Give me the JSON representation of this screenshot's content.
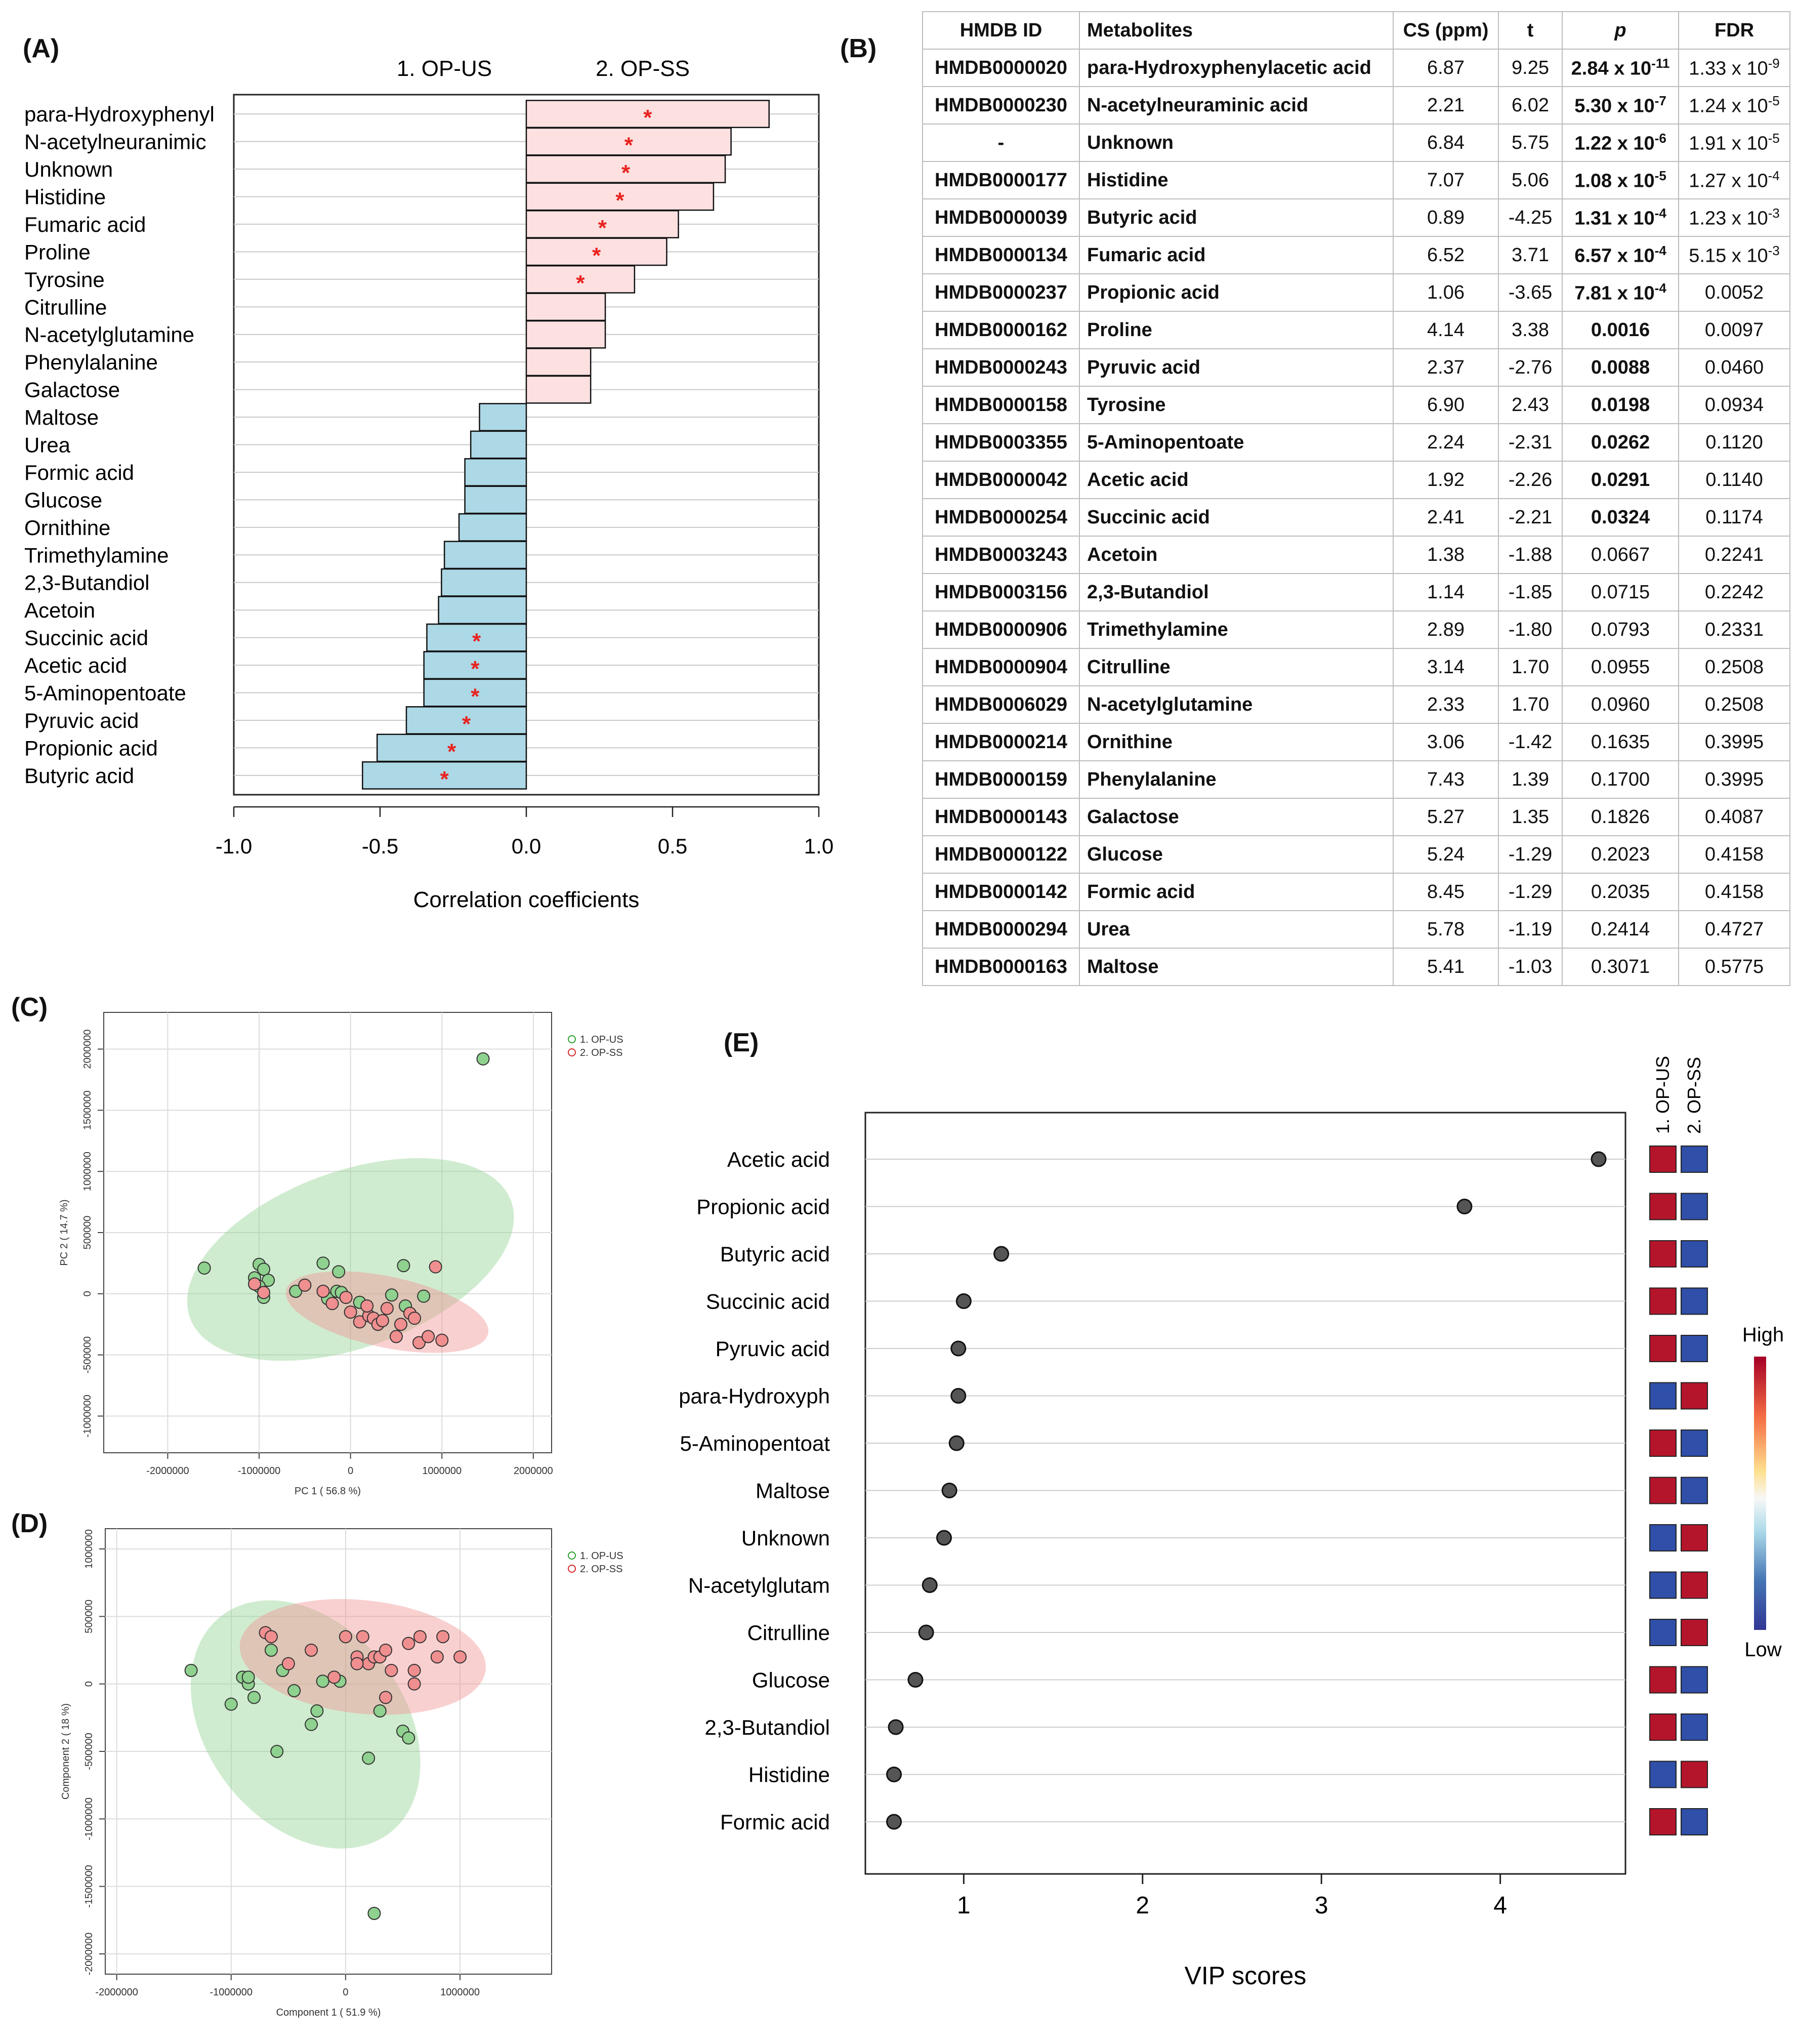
{
  "panel_labels": {
    "A": "(A)",
    "B": "(B)",
    "C": "(C)",
    "D": "(D)",
    "E": "(E)"
  },
  "chart_data": [
    {
      "id": "A",
      "type": "bar",
      "orientation": "horizontal",
      "group_labels": [
        "1. OP-US",
        "2. OP-SS"
      ],
      "xlabel": "Correlation coefficients",
      "xlim": [
        -1.0,
        1.0
      ],
      "xticks": [
        "-1.0",
        "-0.5",
        "0.0",
        "0.5",
        "1.0"
      ],
      "xtick_values": [
        -1.0,
        -0.5,
        0.0,
        0.5,
        1.0
      ],
      "positive_color": "#fde1e1",
      "negative_color": "#add8e6",
      "marker_color": "#e8231f",
      "marker_symbol": "*",
      "categories": [
        "para-Hydroxyphenyl",
        "N-acetylneuranimic",
        "Unknown",
        "Histidine",
        "Fumaric acid",
        "Proline",
        "Tyrosine",
        "Citrulline",
        "N-acetylglutamine",
        "Phenylalanine",
        "Galactose",
        "Maltose",
        "Urea",
        "Formic acid",
        "Glucose",
        "Ornithine",
        "Trimethylamine",
        "2,3-Butandiol",
        "Acetoin",
        "Succinic acid",
        "Acetic acid",
        "5-Aminopentoate",
        "Pyruvic acid",
        "Propionic acid",
        "Butyric acid"
      ],
      "values": [
        0.83,
        0.7,
        0.68,
        0.64,
        0.52,
        0.48,
        0.37,
        0.27,
        0.27,
        0.22,
        0.22,
        -0.16,
        -0.19,
        -0.21,
        -0.21,
        -0.23,
        -0.28,
        -0.29,
        -0.3,
        -0.34,
        -0.35,
        -0.35,
        -0.41,
        -0.51,
        -0.56
      ],
      "significant": [
        true,
        true,
        true,
        true,
        true,
        true,
        true,
        false,
        false,
        false,
        false,
        false,
        false,
        false,
        false,
        false,
        false,
        false,
        false,
        true,
        true,
        true,
        true,
        true,
        true
      ]
    },
    {
      "id": "B",
      "type": "table",
      "columns": [
        "HMDB ID",
        "Metabolites",
        "CS (ppm)",
        "t",
        "p",
        "FDR"
      ],
      "rows": [
        {
          "id": "HMDB0000020",
          "name": "para-Hydroxyphenylacetic acid",
          "cs": "6.87",
          "t": "9.25",
          "p_base": "2.84 x 10",
          "p_exp": "-11",
          "fdr_base": "1.33 x 10",
          "fdr_exp": "-9",
          "bold_p": true
        },
        {
          "id": "HMDB0000230",
          "name": "N-acetylneuraminic acid",
          "cs": "2.21",
          "t": "6.02",
          "p_base": "5.30 x 10",
          "p_exp": "-7",
          "fdr_base": "1.24 x 10",
          "fdr_exp": "-5",
          "bold_p": true
        },
        {
          "id": "-",
          "name": "Unknown",
          "cs": "6.84",
          "t": "5.75",
          "p_base": "1.22 x 10",
          "p_exp": "-6",
          "fdr_base": "1.91 x 10",
          "fdr_exp": "-5",
          "bold_p": true
        },
        {
          "id": "HMDB0000177",
          "name": "Histidine",
          "cs": "7.07",
          "t": "5.06",
          "p_base": "1.08 x 10",
          "p_exp": "-5",
          "fdr_base": "1.27 x 10",
          "fdr_exp": "-4",
          "bold_p": true
        },
        {
          "id": "HMDB0000039",
          "name": "Butyric acid",
          "cs": "0.89",
          "t": "-4.25",
          "p_base": "1.31 x 10",
          "p_exp": "-4",
          "fdr_base": "1.23 x 10",
          "fdr_exp": "-3",
          "bold_p": true
        },
        {
          "id": "HMDB0000134",
          "name": "Fumaric acid",
          "cs": "6.52",
          "t": "3.71",
          "p_base": "6.57 x 10",
          "p_exp": "-4",
          "fdr_base": "5.15 x 10",
          "fdr_exp": "-3",
          "bold_p": true
        },
        {
          "id": "HMDB0000237",
          "name": "Propionic acid",
          "cs": "1.06",
          "t": "-3.65",
          "p_base": "7.81 x 10",
          "p_exp": "-4",
          "fdr_base": "0.0052",
          "fdr_exp": "",
          "bold_p": true
        },
        {
          "id": "HMDB0000162",
          "name": "Proline",
          "cs": "4.14",
          "t": "3.38",
          "p_base": "0.0016",
          "p_exp": "",
          "fdr_base": "0.0097",
          "fdr_exp": "",
          "bold_p": true
        },
        {
          "id": "HMDB0000243",
          "name": "Pyruvic acid",
          "cs": "2.37",
          "t": "-2.76",
          "p_base": "0.0088",
          "p_exp": "",
          "fdr_base": "0.0460",
          "fdr_exp": "",
          "bold_p": true
        },
        {
          "id": "HMDB0000158",
          "name": "Tyrosine",
          "cs": "6.90",
          "t": "2.43",
          "p_base": "0.0198",
          "p_exp": "",
          "fdr_base": "0.0934",
          "fdr_exp": "",
          "bold_p": true
        },
        {
          "id": "HMDB0003355",
          "name": "5-Aminopentoate",
          "cs": "2.24",
          "t": "-2.31",
          "p_base": "0.0262",
          "p_exp": "",
          "fdr_base": "0.1120",
          "fdr_exp": "",
          "bold_p": true
        },
        {
          "id": "HMDB0000042",
          "name": "Acetic acid",
          "cs": "1.92",
          "t": "-2.26",
          "p_base": "0.0291",
          "p_exp": "",
          "fdr_base": "0.1140",
          "fdr_exp": "",
          "bold_p": true
        },
        {
          "id": "HMDB0000254",
          "name": "Succinic acid",
          "cs": "2.41",
          "t": "-2.21",
          "p_base": "0.0324",
          "p_exp": "",
          "fdr_base": "0.1174",
          "fdr_exp": "",
          "bold_p": true
        },
        {
          "id": "HMDB0003243",
          "name": "Acetoin",
          "cs": "1.38",
          "t": "-1.88",
          "p_base": "0.0667",
          "p_exp": "",
          "fdr_base": "0.2241",
          "fdr_exp": "",
          "bold_p": false
        },
        {
          "id": "HMDB0003156",
          "name": "2,3-Butandiol",
          "cs": "1.14",
          "t": "-1.85",
          "p_base": "0.0715",
          "p_exp": "",
          "fdr_base": "0.2242",
          "fdr_exp": "",
          "bold_p": false
        },
        {
          "id": "HMDB0000906",
          "name": "Trimethylamine",
          "cs": "2.89",
          "t": "-1.80",
          "p_base": "0.0793",
          "p_exp": "",
          "fdr_base": "0.2331",
          "fdr_exp": "",
          "bold_p": false
        },
        {
          "id": "HMDB0000904",
          "name": "Citrulline",
          "cs": "3.14",
          "t": "1.70",
          "p_base": "0.0955",
          "p_exp": "",
          "fdr_base": "0.2508",
          "fdr_exp": "",
          "bold_p": false
        },
        {
          "id": "HMDB0006029",
          "name": "N-acetylglutamine",
          "cs": "2.33",
          "t": "1.70",
          "p_base": "0.0960",
          "p_exp": "",
          "fdr_base": "0.2508",
          "fdr_exp": "",
          "bold_p": false
        },
        {
          "id": "HMDB0000214",
          "name": "Ornithine",
          "cs": "3.06",
          "t": "-1.42",
          "p_base": "0.1635",
          "p_exp": "",
          "fdr_base": "0.3995",
          "fdr_exp": "",
          "bold_p": false
        },
        {
          "id": "HMDB0000159",
          "name": "Phenylalanine",
          "cs": "7.43",
          "t": "1.39",
          "p_base": "0.1700",
          "p_exp": "",
          "fdr_base": "0.3995",
          "fdr_exp": "",
          "bold_p": false
        },
        {
          "id": "HMDB0000143",
          "name": "Galactose",
          "cs": "5.27",
          "t": "1.35",
          "p_base": "0.1826",
          "p_exp": "",
          "fdr_base": "0.4087",
          "fdr_exp": "",
          "bold_p": false
        },
        {
          "id": "HMDB0000122",
          "name": "Glucose",
          "cs": "5.24",
          "t": "-1.29",
          "p_base": "0.2023",
          "p_exp": "",
          "fdr_base": "0.4158",
          "fdr_exp": "",
          "bold_p": false
        },
        {
          "id": "HMDB0000142",
          "name": "Formic acid",
          "cs": "8.45",
          "t": "-1.29",
          "p_base": "0.2035",
          "p_exp": "",
          "fdr_base": "0.4158",
          "fdr_exp": "",
          "bold_p": false
        },
        {
          "id": "HMDB0000294",
          "name": "Urea",
          "cs": "5.78",
          "t": "-1.19",
          "p_base": "0.2414",
          "p_exp": "",
          "fdr_base": "0.4727",
          "fdr_exp": "",
          "bold_p": false
        },
        {
          "id": "HMDB0000163",
          "name": "Maltose",
          "cs": "5.41",
          "t": "-1.03",
          "p_base": "0.3071",
          "p_exp": "",
          "fdr_base": "0.5775",
          "fdr_exp": "",
          "bold_p": false
        }
      ]
    },
    {
      "id": "C",
      "type": "scatter",
      "xlabel": "PC 1 ( 56.8 %)",
      "ylabel": "PC 2 ( 14.7 %)",
      "xlim": [
        -2700000,
        2200000
      ],
      "ylim": [
        -1300000,
        2300000
      ],
      "xticks": [
        -2000000,
        -1000000,
        0,
        1000000,
        2000000
      ],
      "xtick_labels": [
        "-2000000",
        "-1000000",
        "0",
        "1000000",
        "2000000"
      ],
      "yticks": [
        -1000000,
        -500000,
        0,
        500000,
        1000000,
        1500000,
        2000000
      ],
      "ytick_labels": [
        "-1000000",
        "-500000",
        "0",
        "500000",
        "1000000",
        "1500000",
        "2000000"
      ],
      "legend_position": "top-right",
      "series": [
        {
          "name": "1. OP-US",
          "color": "#2ca02c",
          "fill": "#8fd18f",
          "ellipse": {
            "cx": 0,
            "cy": 280000,
            "rx": 1870000,
            "ry": 720000,
            "angle_deg": 20
          },
          "x": [
            1450000,
            -1600000,
            -1000000,
            -950000,
            -1050000,
            -900000,
            -1000000,
            -950000,
            -300000,
            -130000,
            -250000,
            580000,
            450000,
            800000,
            600000,
            -600000,
            -150000,
            -100000,
            100000
          ],
          "y": [
            1920000,
            210000,
            240000,
            200000,
            130000,
            110000,
            60000,
            -30000,
            250000,
            180000,
            -40000,
            230000,
            -10000,
            -20000,
            -100000,
            20000,
            20000,
            10000,
            -70000
          ]
        },
        {
          "name": "2. OP-SS",
          "color": "#d62728",
          "fill": "#f08f8f",
          "ellipse": {
            "cx": 400000,
            "cy": -150000,
            "rx": 1130000,
            "ry": 290000,
            "angle_deg": -12
          },
          "x": [
            930000,
            -1050000,
            -950000,
            -500000,
            -300000,
            -200000,
            0,
            100000,
            200000,
            250000,
            300000,
            350000,
            400000,
            500000,
            550000,
            650000,
            750000,
            850000,
            1000000,
            700000,
            -50000,
            180000
          ],
          "y": [
            220000,
            80000,
            10000,
            70000,
            20000,
            -80000,
            -150000,
            -230000,
            -180000,
            -200000,
            -250000,
            -220000,
            -120000,
            -350000,
            -250000,
            -160000,
            -400000,
            -350000,
            -380000,
            -200000,
            -30000,
            -100000
          ]
        }
      ]
    },
    {
      "id": "D",
      "type": "scatter",
      "xlabel": "Component 1 ( 51.9 %)",
      "ylabel": "Component 2 ( 18 %)",
      "xlim": [
        -2100000,
        1800000
      ],
      "ylim": [
        -2150000,
        1150000
      ],
      "xticks": [
        -2000000,
        -1000000,
        0,
        1000000
      ],
      "xtick_labels": [
        "-2000000",
        "-1000000",
        "0",
        "1000000"
      ],
      "yticks": [
        -2000000,
        -1500000,
        -1000000,
        -500000,
        0,
        500000,
        1000000
      ],
      "ytick_labels": [
        "-2000000",
        "-1500000",
        "-1000000",
        "-500000",
        "0",
        "500000",
        "1000000"
      ],
      "legend_position": "top-right",
      "series": [
        {
          "name": "1. OP-US",
          "color": "#2ca02c",
          "fill": "#8fd18f",
          "ellipse": {
            "cx": -350000,
            "cy": -300000,
            "rx": 1200000,
            "ry": 730000,
            "angle_deg": -52
          },
          "x": [
            -1350000,
            -1000000,
            -900000,
            -850000,
            -800000,
            -850000,
            -650000,
            -550000,
            -450000,
            -300000,
            -250000,
            -200000,
            -600000,
            200000,
            300000,
            500000,
            550000,
            -50000,
            250000
          ],
          "y": [
            100000,
            -150000,
            50000,
            0,
            -100000,
            50000,
            250000,
            100000,
            -50000,
            -300000,
            -200000,
            20000,
            -500000,
            -550000,
            -200000,
            -350000,
            -400000,
            20000,
            -1700000
          ]
        },
        {
          "name": "2. OP-SS",
          "color": "#d62728",
          "fill": "#f08f8f",
          "ellipse": {
            "cx": 150000,
            "cy": 200000,
            "rx": 1080000,
            "ry": 420000,
            "angle_deg": -6
          },
          "x": [
            -700000,
            -650000,
            -500000,
            -300000,
            -100000,
            0,
            100000,
            150000,
            200000,
            250000,
            300000,
            350000,
            400000,
            550000,
            600000,
            650000,
            800000,
            850000,
            1000000,
            350000,
            600000,
            100000
          ],
          "y": [
            380000,
            350000,
            150000,
            250000,
            50000,
            350000,
            200000,
            350000,
            150000,
            200000,
            200000,
            250000,
            100000,
            300000,
            100000,
            350000,
            200000,
            350000,
            200000,
            -100000,
            0,
            150000
          ]
        }
      ]
    },
    {
      "id": "E",
      "type": "scatter",
      "style": "dot",
      "xlabel": "VIP scores",
      "xlim": [
        0.45,
        4.7
      ],
      "xticks": [
        1,
        2,
        3,
        4
      ],
      "xtick_labels": [
        "1",
        "2",
        "3",
        "4"
      ],
      "categories": [
        "Acetic acid",
        "Propionic acid",
        "Butyric acid",
        "Succinic acid",
        "Pyruvic acid",
        "para-Hydroxyph",
        "5-Aminopentoat",
        "Maltose",
        "Unknown",
        "N-acetylglutam",
        "Citrulline",
        "Glucose",
        "2,3-Butandiol",
        "Histidine",
        "Formic acid"
      ],
      "values": [
        4.55,
        3.8,
        1.21,
        1.0,
        0.97,
        0.97,
        0.96,
        0.92,
        0.89,
        0.81,
        0.79,
        0.73,
        0.62,
        0.61,
        0.61
      ],
      "heat_columns": [
        "1. OP-US",
        "2. OP-SS"
      ],
      "heat_levels": [
        [
          "high",
          "low"
        ],
        [
          "high",
          "low"
        ],
        [
          "high",
          "low"
        ],
        [
          "high",
          "low"
        ],
        [
          "high",
          "low"
        ],
        [
          "low",
          "high"
        ],
        [
          "high",
          "low"
        ],
        [
          "high",
          "low"
        ],
        [
          "low",
          "high"
        ],
        [
          "low",
          "high"
        ],
        [
          "low",
          "high"
        ],
        [
          "high",
          "low"
        ],
        [
          "high",
          "low"
        ],
        [
          "low",
          "high"
        ],
        [
          "high",
          "low"
        ]
      ],
      "colorbar_labels": {
        "high": "High",
        "low": "Low"
      },
      "colors": {
        "high": "#b5152b",
        "low": "#2f4fa8",
        "dot": "#555555"
      }
    }
  ]
}
